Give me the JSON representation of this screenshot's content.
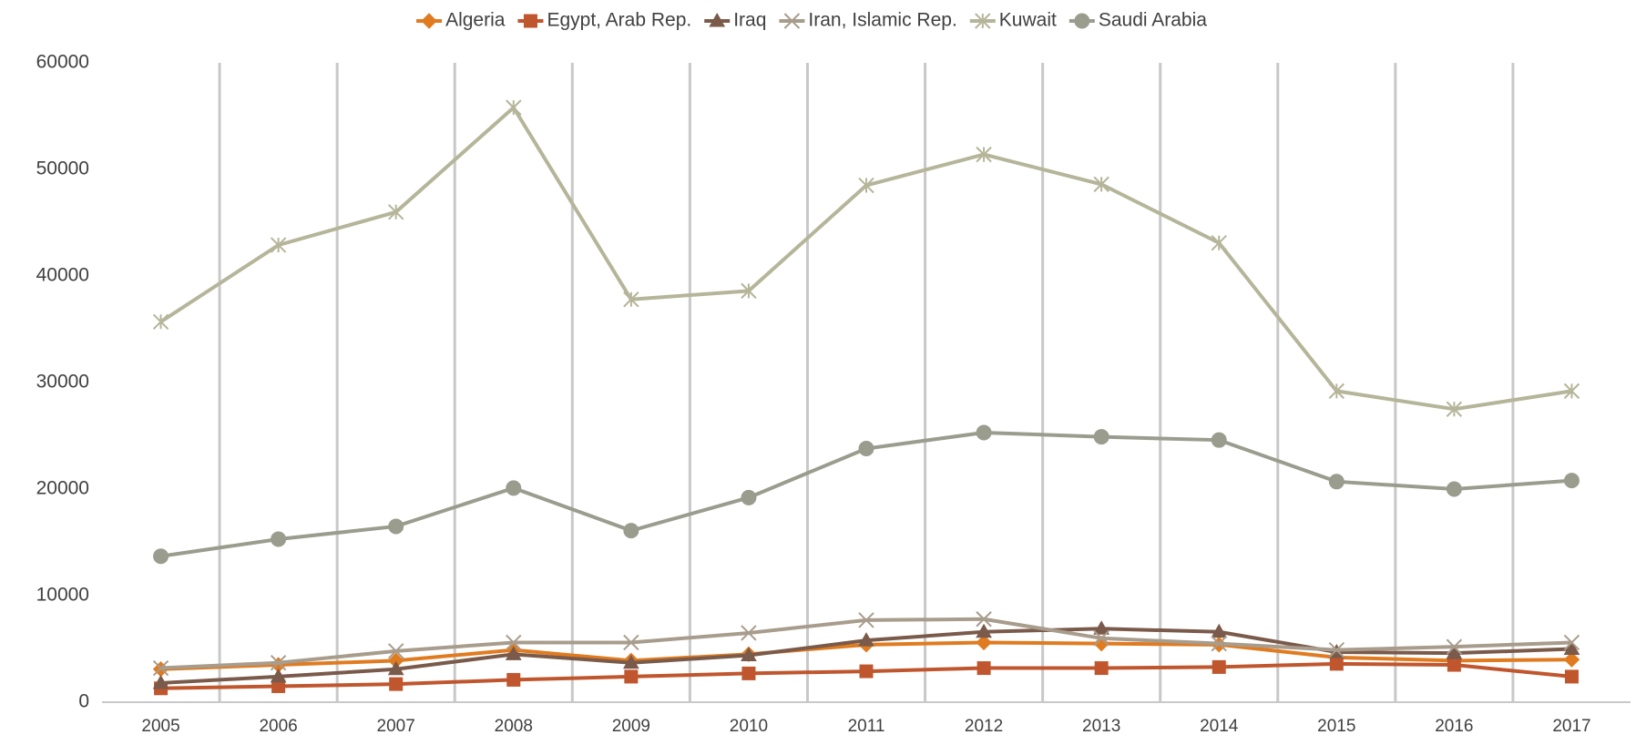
{
  "chart_data": {
    "type": "line",
    "categories": [
      "2005",
      "2006",
      "2007",
      "2008",
      "2009",
      "2010",
      "2011",
      "2012",
      "2013",
      "2014",
      "2015",
      "2016",
      "2017"
    ],
    "series": [
      {
        "name": "Algeria",
        "color": "#e07b20",
        "marker": "diamond",
        "values": [
          3100,
          3500,
          3900,
          4900,
          3900,
          4500,
          5400,
          5600,
          5500,
          5400,
          4200,
          3900,
          4000
        ]
      },
      {
        "name": "Egypt, Arab Rep.",
        "color": "#c0562e",
        "marker": "square",
        "values": [
          1300,
          1500,
          1700,
          2100,
          2400,
          2700,
          2900,
          3200,
          3200,
          3300,
          3600,
          3500,
          2400
        ]
      },
      {
        "name": "Iraq",
        "color": "#7a5a4a",
        "marker": "triangle",
        "values": [
          1800,
          2400,
          3100,
          4500,
          3700,
          4400,
          5800,
          6600,
          6900,
          6600,
          4700,
          4600,
          5000
        ]
      },
      {
        "name": "Iran, Islamic Rep.",
        "color": "#a89c8c",
        "marker": "x",
        "values": [
          3200,
          3700,
          4800,
          5600,
          5600,
          6500,
          7700,
          7800,
          6000,
          5500,
          4900,
          5200,
          5600
        ]
      },
      {
        "name": "Kuwait",
        "color": "#b5b59a",
        "marker": "star",
        "values": [
          35700,
          42900,
          46000,
          55800,
          37800,
          38600,
          48500,
          51400,
          48600,
          43100,
          29200,
          27500,
          29200
        ]
      },
      {
        "name": "Saudi Arabia",
        "color": "#9a9c8e",
        "marker": "circle",
        "values": [
          13700,
          15300,
          16500,
          20100,
          16100,
          19200,
          23800,
          25300,
          24900,
          24600,
          20700,
          20000,
          20800
        ]
      }
    ],
    "ylim": [
      0,
      60000
    ],
    "yticks": [
      0,
      10000,
      20000,
      30000,
      40000,
      50000,
      60000
    ],
    "legend": "top"
  }
}
